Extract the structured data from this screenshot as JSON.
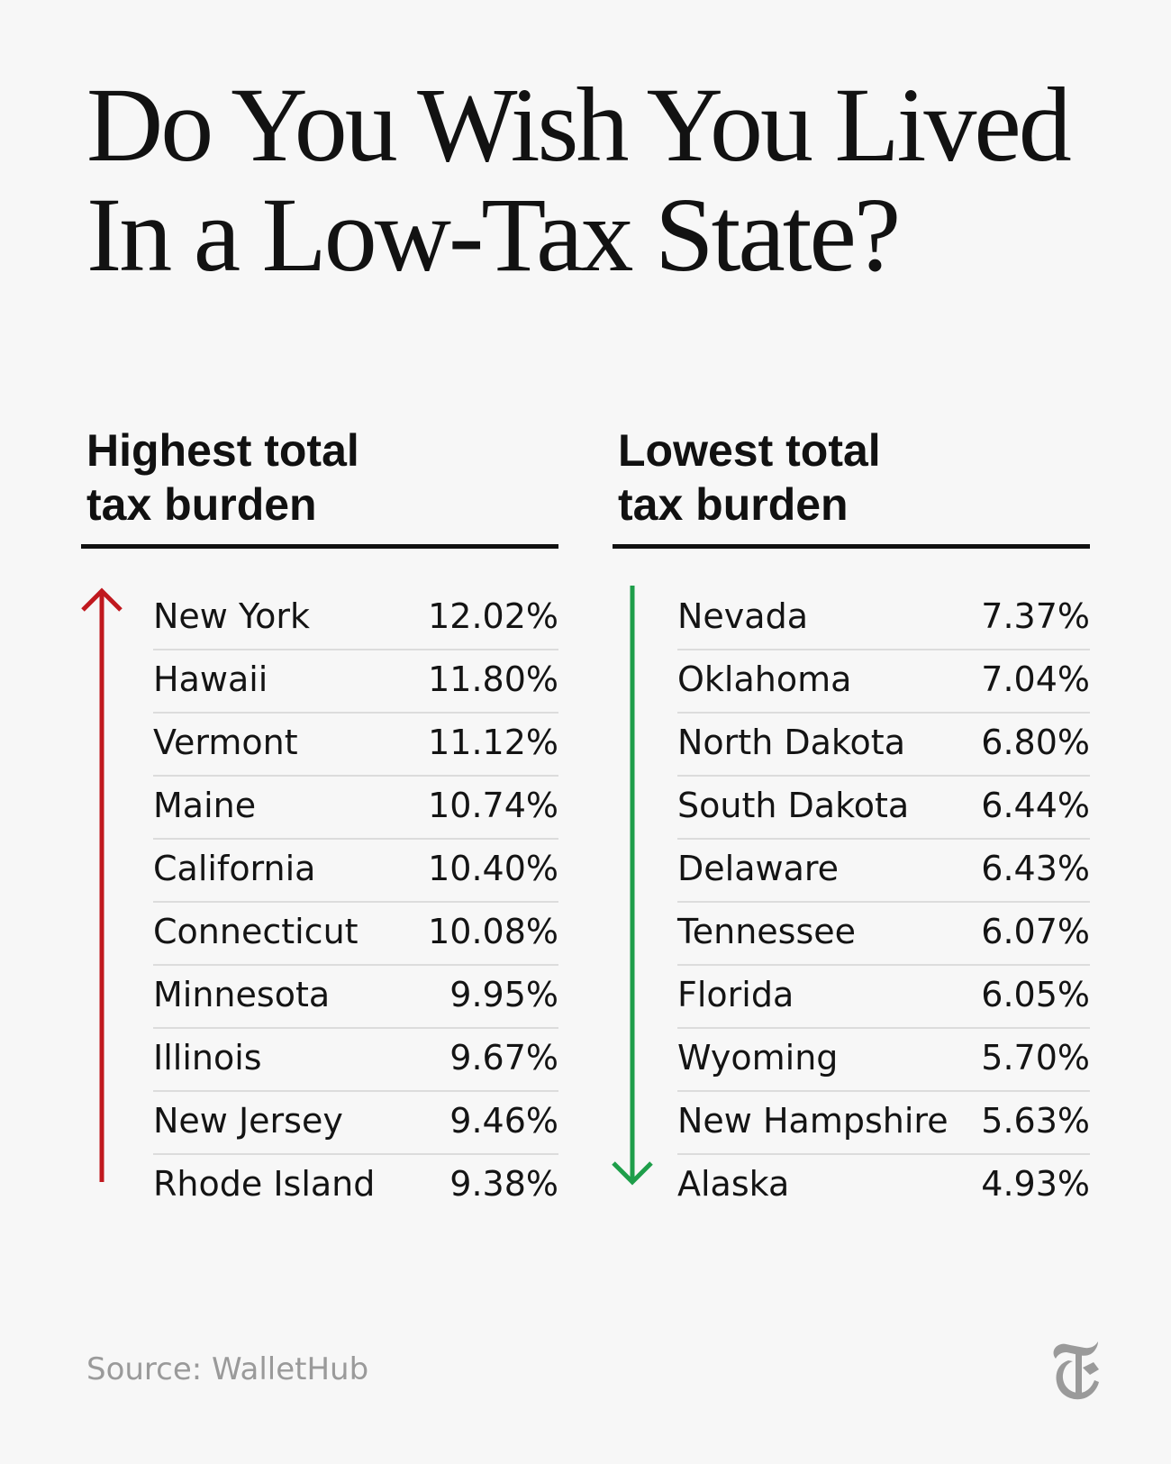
{
  "title": {
    "line1": "Do You Wish You Lived",
    "line2": "In a Low-Tax State?"
  },
  "colors": {
    "highest_arrow": "#c0191f",
    "lowest_arrow": "#1e9e4a",
    "source_text": "#9a9a9a"
  },
  "chart_data": [
    {
      "type": "table",
      "title": "Highest total tax burden",
      "title_lines": [
        "Highest total",
        "tax burden"
      ],
      "direction": "up",
      "arrow_color": "#c0191f",
      "rows": [
        {
          "state": "New York",
          "value": "12.02%"
        },
        {
          "state": "Hawaii",
          "value": "11.80%"
        },
        {
          "state": "Vermont",
          "value": "11.12%"
        },
        {
          "state": "Maine",
          "value": "10.74%"
        },
        {
          "state": "California",
          "value": "10.40%"
        },
        {
          "state": "Connecticut",
          "value": "10.08%"
        },
        {
          "state": "Minnesota",
          "value": "9.95%"
        },
        {
          "state": "Illinois",
          "value": "9.67%"
        },
        {
          "state": "New Jersey",
          "value": "9.46%"
        },
        {
          "state": "Rhode Island",
          "value": "9.38%"
        }
      ]
    },
    {
      "type": "table",
      "title": "Lowest total tax burden",
      "title_lines": [
        "Lowest total",
        "tax burden"
      ],
      "direction": "down",
      "arrow_color": "#1e9e4a",
      "rows": [
        {
          "state": "Nevada",
          "value": "7.37%"
        },
        {
          "state": "Oklahoma",
          "value": "7.04%"
        },
        {
          "state": "North Dakota",
          "value": "6.80%"
        },
        {
          "state": "South Dakota",
          "value": "6.44%"
        },
        {
          "state": "Delaware",
          "value": "6.43%"
        },
        {
          "state": "Tennessee",
          "value": "6.07%"
        },
        {
          "state": "Florida",
          "value": "6.05%"
        },
        {
          "state": "Wyoming",
          "value": "5.70%"
        },
        {
          "state": "New Hampshire",
          "value": "5.63%"
        },
        {
          "state": "Alaska",
          "value": "4.93%"
        }
      ]
    }
  ],
  "source": "Source: WalletHub",
  "logo_icon": "nyt-logo-icon"
}
